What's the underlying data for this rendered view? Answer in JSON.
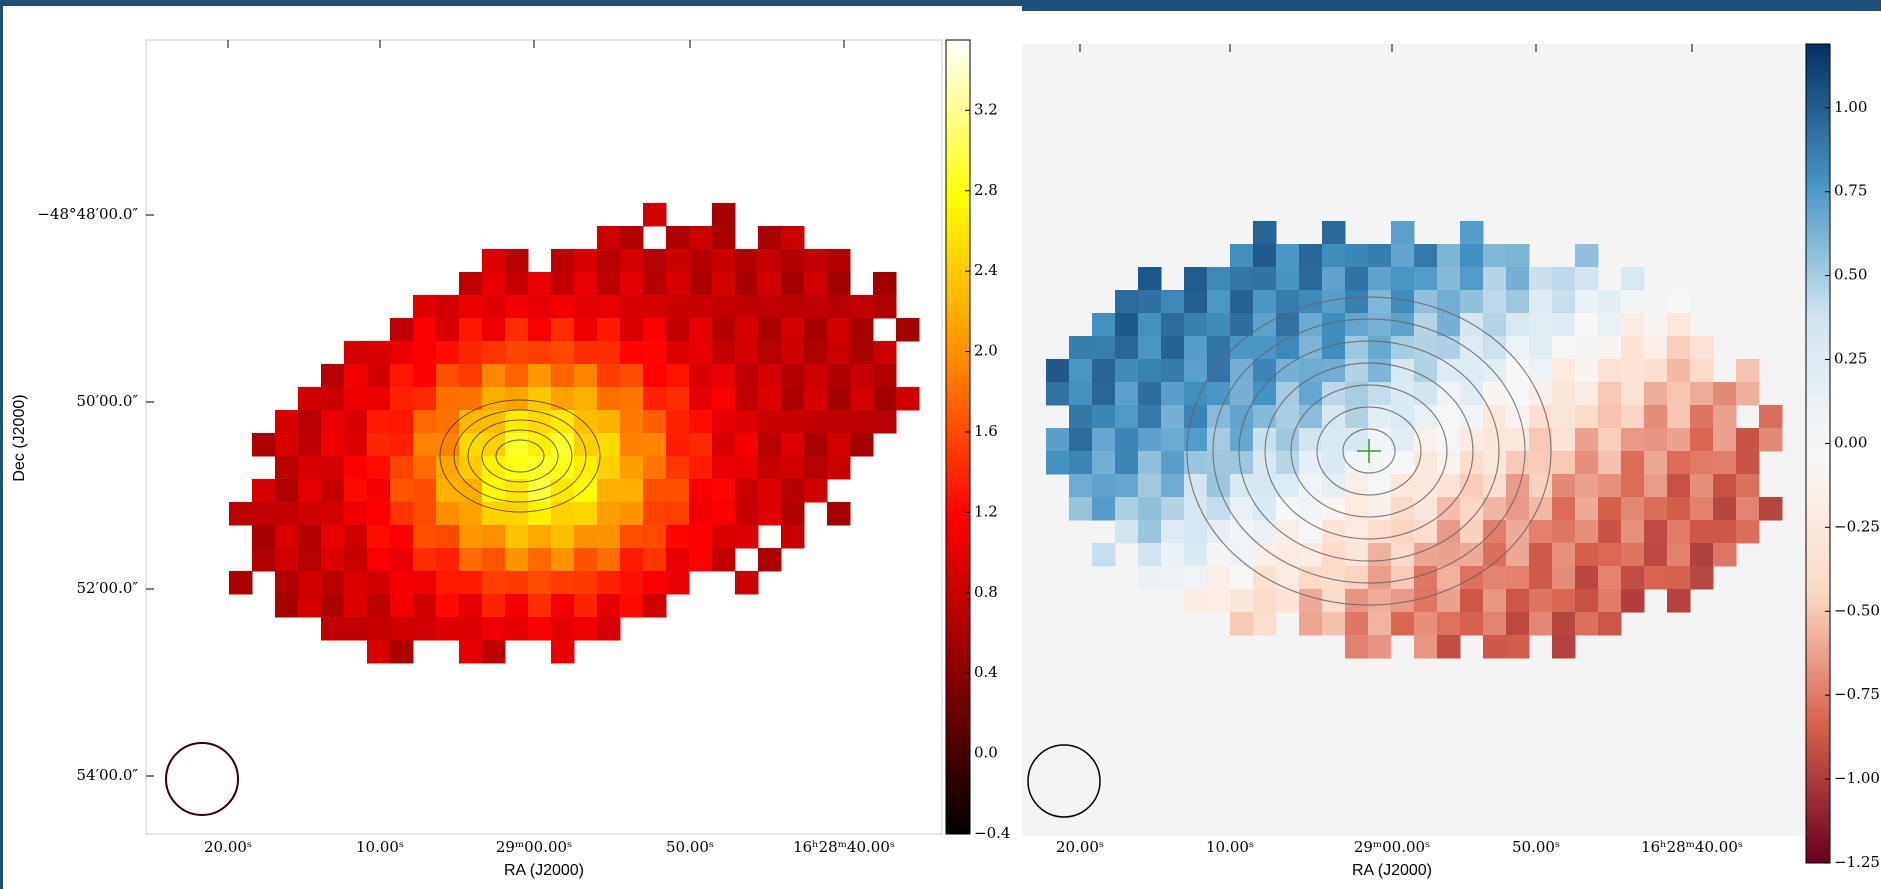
{
  "chart_data": [
    {
      "type": "image",
      "xlabel": "RA (J2000)",
      "ylabel": "Dec (J2000)",
      "xtick_labels": [
        "20.00ˢ",
        "10.00ˢ",
        "29ᵐ00.00ˢ",
        "50.00ˢ",
        "16ʰ28ᵐ40.00ˢ"
      ],
      "ytick_labels": [
        "−48°48′00.0″",
        "50′00.0″",
        "52′00.0″",
        "54′00.0″"
      ],
      "colormap": [
        "#000000",
        "#8b0000",
        "#ff0000",
        "#ff8c00",
        "#ffff00",
        "#ffffff"
      ],
      "clim": [
        -0.4,
        3.55
      ],
      "cticks": [
        {
          "value": -0.4,
          "label": "−0.4"
        },
        {
          "value": 0,
          "label": "0.0"
        },
        0.4,
        0.8,
        1.2,
        1.6,
        {
          "value": 2,
          "label": "2.0"
        },
        2.4,
        2.8,
        3.2
      ]
    },
    {
      "type": "image",
      "xlabel": "RA (J2000)",
      "xtick_labels": [
        "20.00ˢ",
        "10.00ˢ",
        "29ᵐ00.00ˢ",
        "50.00ˢ",
        "16ʰ28ᵐ40.00ˢ"
      ],
      "colormap": [
        "#67001f",
        "#d6604d",
        "#fddbc7",
        "#f7f7f7",
        "#d1e5f0",
        "#4393c3",
        "#053061"
      ],
      "clim": [
        -1.25,
        1.19
      ],
      "cticks": [
        {
          "value": -1.25,
          "label": "−1.25"
        },
        {
          "value": -1,
          "label": "−1.00"
        },
        {
          "value": -0.75,
          "label": "−0.75"
        },
        {
          "value": -0.5,
          "label": "−0.50"
        },
        {
          "value": -0.25,
          "label": "−0.25"
        },
        {
          "value": 0,
          "label": "0.00"
        },
        {
          "value": 0.25,
          "label": "0.25"
        },
        {
          "value": 0.5,
          "label": "0.50"
        },
        {
          "value": 0.75,
          "label": "0.75"
        },
        {
          "value": 1,
          "label": "1.00"
        }
      ]
    }
  ]
}
